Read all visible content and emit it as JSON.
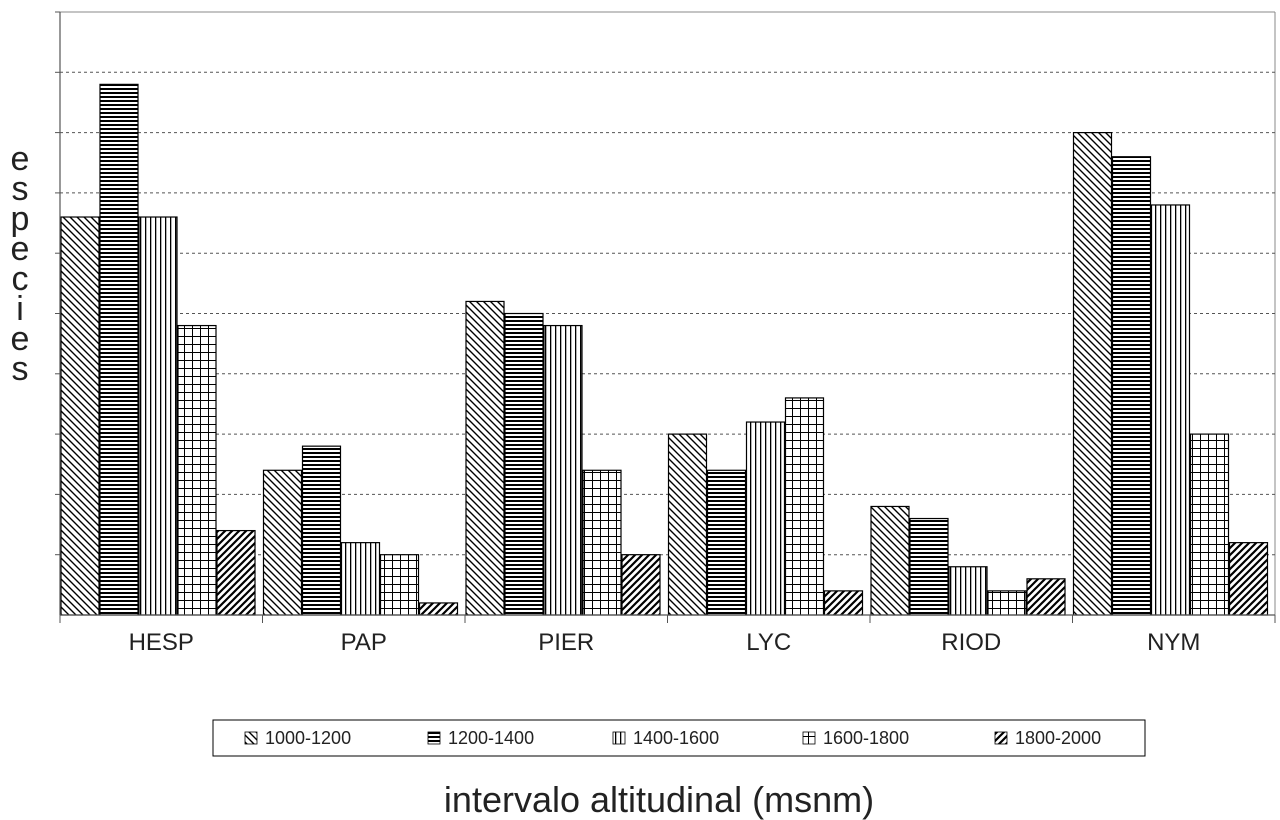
{
  "chart_data": {
    "type": "bar",
    "title": "",
    "xlabel": "intervalo altitudinal (msnm)",
    "ylabel": "especies",
    "categories": [
      "HESP",
      "PAP",
      "PIER",
      "LYC",
      "RIOD",
      "NYM"
    ],
    "ylim": [
      0,
      50
    ],
    "grid": true,
    "legend_position": "bottom",
    "series": [
      {
        "name": "1000-1200",
        "pattern": "diagonal-down",
        "values": [
          33,
          12,
          26,
          15,
          9,
          40
        ]
      },
      {
        "name": "1200-1400",
        "pattern": "horizontal",
        "values": [
          44,
          14,
          25,
          12,
          8,
          38
        ]
      },
      {
        "name": "1400-1600",
        "pattern": "vertical",
        "values": [
          33,
          6,
          24,
          16,
          4,
          34
        ]
      },
      {
        "name": "1600-1800",
        "pattern": "grid",
        "values": [
          24,
          5,
          12,
          18,
          2,
          15
        ]
      },
      {
        "name": "1800-2000",
        "pattern": "diagonal-up",
        "values": [
          7,
          1,
          5,
          2,
          3,
          6
        ]
      }
    ],
    "colors": {
      "bar_stroke": "#000000",
      "grid": "#555555",
      "axis": "#888888"
    }
  }
}
